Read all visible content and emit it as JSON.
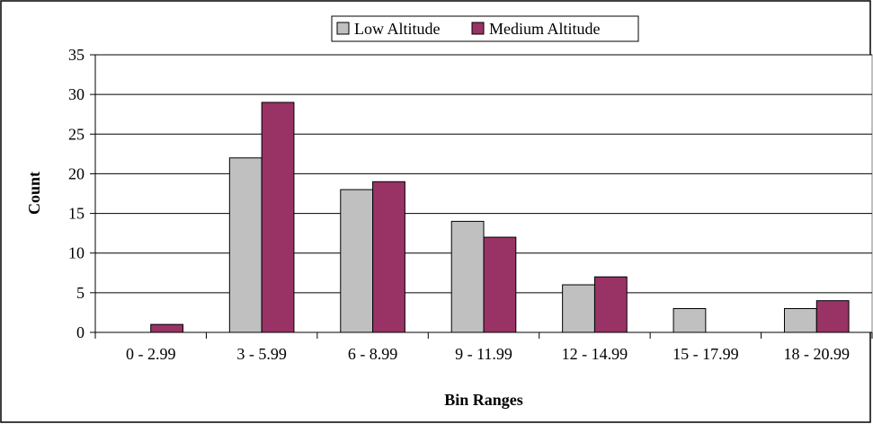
{
  "chart_data": {
    "type": "bar",
    "categories": [
      "0 - 2.99",
      "3 - 5.99",
      "6 - 8.99",
      "9 - 11.99",
      "12 - 14.99",
      "15 - 17.99",
      "18 - 20.99"
    ],
    "series": [
      {
        "name": "Low Altitude",
        "values": [
          0,
          22,
          18,
          14,
          6,
          3,
          3
        ],
        "color": "#c0c0c0"
      },
      {
        "name": "Medium Altitude",
        "values": [
          1,
          29,
          19,
          12,
          7,
          0,
          4
        ],
        "color": "#993366"
      }
    ],
    "title": "",
    "xlabel": "Bin Ranges",
    "ylabel": "Count",
    "ylim": [
      0,
      35
    ],
    "yticks": [
      0,
      5,
      10,
      15,
      20,
      25,
      30,
      35
    ],
    "grid": true,
    "legend_position": "top"
  }
}
